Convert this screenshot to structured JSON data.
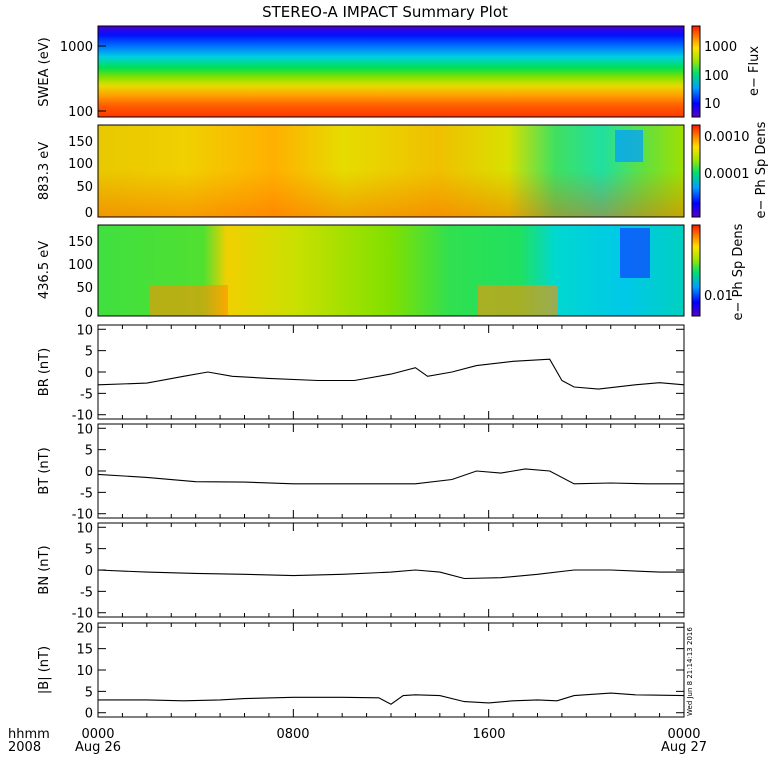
{
  "chart_data": {
    "type": "multi-panel time series",
    "title": "STEREO-A IMPACT Summary Plot",
    "x_axis": {
      "row_labels": [
        "hhmm",
        "2008"
      ],
      "ticks": [
        {
          "time": "0000",
          "date": "Aug 26"
        },
        {
          "time": "0800",
          "date": ""
        },
        {
          "time": "1600",
          "date": ""
        },
        {
          "time": "0000",
          "date": "Aug 27"
        }
      ],
      "range_hours": [
        0,
        24
      ]
    },
    "timestamp": "Wed Jun  8 21:14:13 2016",
    "spectrograms": [
      {
        "ylabel": "SWEA (eV)",
        "y_scale": "log",
        "ylim": [
          95,
          2000
        ],
        "y_ticks": [
          "1000",
          "100"
        ],
        "colorbar_label": "e− Flux",
        "colorbar_ticks": [
          "1000",
          "100",
          "10"
        ],
        "colorbar_scale": "log"
      },
      {
        "ylabel": "883.3 eV",
        "ylim": [
          -10,
          180
        ],
        "y_ticks": [
          "150",
          "100",
          "50",
          "0"
        ],
        "colorbar_label": "e− Ph Sp Dens",
        "colorbar_ticks": [
          "0.0010",
          "0.0001"
        ],
        "colorbar_scale": "log"
      },
      {
        "ylabel": "436.5 eV",
        "ylim": [
          -10,
          180
        ],
        "y_ticks": [
          "150",
          "100",
          "50",
          "0"
        ],
        "colorbar_label": "e− Ph Sp Dens",
        "colorbar_ticks": [
          "0.01"
        ],
        "colorbar_scale": "log"
      }
    ],
    "line_panels": [
      {
        "ylabel": "BR (nT)",
        "ylim": [
          -11,
          11
        ],
        "y_ticks": [
          10,
          5,
          0,
          -5,
          -10
        ],
        "x": [
          0,
          2,
          3.5,
          4.5,
          5.5,
          7,
          9,
          10.5,
          12,
          13,
          13.5,
          14.5,
          15.5,
          17,
          18.5,
          19,
          19.5,
          20.5,
          22,
          23,
          24
        ],
        "y": [
          -3,
          -2.6,
          -1,
          0,
          -1,
          -1.5,
          -2,
          -2,
          -0.5,
          1,
          -1,
          0,
          1.5,
          2.5,
          3,
          -2,
          -3.5,
          -4,
          -3,
          -2.5,
          -3
        ]
      },
      {
        "ylabel": "BT (nT)",
        "ylim": [
          -11,
          11
        ],
        "y_ticks": [
          10,
          5,
          0,
          -5,
          -10
        ],
        "x": [
          0,
          2,
          4,
          6,
          8,
          10,
          11,
          13,
          14.5,
          15.5,
          16.5,
          17.5,
          18.5,
          19.5,
          21,
          22.5,
          24
        ],
        "y": [
          -0.8,
          -1.5,
          -2.5,
          -2.6,
          -3,
          -3,
          -3,
          -3,
          -2,
          0,
          -0.5,
          0.5,
          0,
          -3,
          -2.8,
          -3,
          -3
        ]
      },
      {
        "ylabel": "BN (nT)",
        "ylim": [
          -11,
          11
        ],
        "y_ticks": [
          10,
          5,
          0,
          -5,
          -10
        ],
        "x": [
          0,
          2,
          4,
          6,
          8,
          10,
          12,
          13,
          14,
          15,
          16.5,
          18,
          19.5,
          21,
          23,
          24
        ],
        "y": [
          0,
          -0.5,
          -0.8,
          -1,
          -1.3,
          -1,
          -0.5,
          0,
          -0.5,
          -2,
          -1.8,
          -1,
          0,
          0,
          -0.5,
          -0.5
        ]
      },
      {
        "ylabel": "|B| (nT)",
        "ylim": [
          -1,
          21
        ],
        "y_ticks": [
          20,
          15,
          10,
          5,
          0
        ],
        "x": [
          0,
          2,
          3.5,
          5,
          6,
          8,
          10,
          11.5,
          12,
          12.5,
          13,
          14,
          15,
          16,
          17,
          18,
          18.8,
          19.5,
          21,
          22,
          24
        ],
        "y": [
          3,
          3,
          2.8,
          3,
          3.3,
          3.6,
          3.6,
          3.5,
          2,
          4,
          4.2,
          4,
          2.6,
          2.3,
          2.8,
          3,
          2.8,
          4,
          4.6,
          4.2,
          4
        ]
      }
    ]
  }
}
